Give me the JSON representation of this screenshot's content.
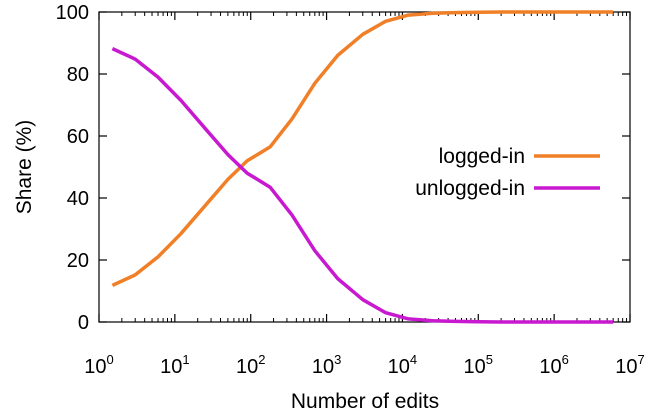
{
  "chart_data": {
    "type": "line",
    "title": "",
    "xlabel": "Number of edits",
    "ylabel": "Share (%)",
    "xscale": "log",
    "xlim": [
      1,
      10000000
    ],
    "ylim": [
      0,
      100
    ],
    "x_ticks": [
      {
        "base": "10",
        "exp": "0",
        "value": 1
      },
      {
        "base": "10",
        "exp": "1",
        "value": 10
      },
      {
        "base": "10",
        "exp": "2",
        "value": 100
      },
      {
        "base": "10",
        "exp": "3",
        "value": 1000
      },
      {
        "base": "10",
        "exp": "4",
        "value": 10000
      },
      {
        "base": "10",
        "exp": "5",
        "value": 100000
      },
      {
        "base": "10",
        "exp": "6",
        "value": 1000000
      },
      {
        "base": "10",
        "exp": "7",
        "value": 10000000
      }
    ],
    "y_ticks": [
      {
        "label": "0",
        "value": 0
      },
      {
        "label": "20",
        "value": 20
      },
      {
        "label": "40",
        "value": 40
      },
      {
        "label": "60",
        "value": 60
      },
      {
        "label": "80",
        "value": 80
      },
      {
        "label": "100",
        "value": 100
      }
    ],
    "grid": false,
    "legend_position": "right",
    "x": [
      1.5,
      3,
      6,
      12,
      25,
      50,
      90,
      180,
      350,
      700,
      1400,
      3000,
      6000,
      12000,
      25000,
      50000,
      100000,
      200000,
      1000000,
      6000000
    ],
    "series": [
      {
        "name": "logged-in",
        "color": "#f07f28",
        "values": [
          11.8,
          15.2,
          21.0,
          28.5,
          37.5,
          46.0,
          52.0,
          56.5,
          65.5,
          77.0,
          86.0,
          92.8,
          97.0,
          99.0,
          99.6,
          99.8,
          99.9,
          100.0,
          100.0,
          100.0
        ]
      },
      {
        "name": "unlogged-in",
        "color": "#c818d0",
        "values": [
          88.2,
          84.8,
          79.0,
          71.5,
          62.5,
          54.0,
          48.0,
          43.5,
          34.5,
          23.0,
          14.0,
          7.2,
          3.0,
          1.0,
          0.4,
          0.2,
          0.1,
          0.0,
          0.0,
          0.0
        ]
      }
    ]
  }
}
